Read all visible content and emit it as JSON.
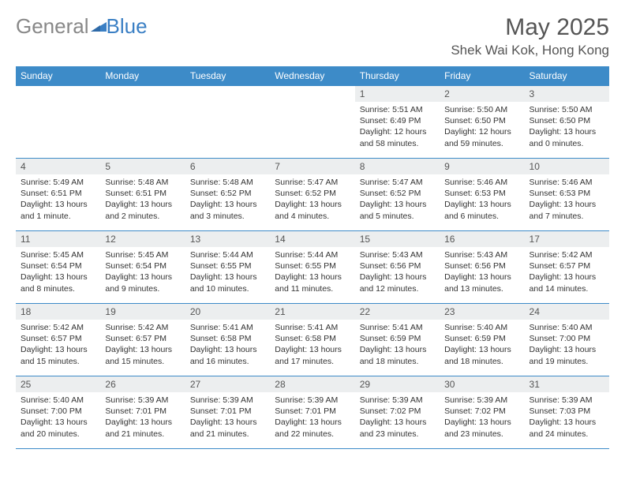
{
  "logo": {
    "part1": "General",
    "part2": "Blue"
  },
  "header": {
    "month_title": "May 2025",
    "location": "Shek Wai Kok, Hong Kong"
  },
  "colors": {
    "header_bg": "#3d8bc8",
    "header_text": "#ffffff",
    "daynum_bg": "#eceeef",
    "border": "#3d8bc8",
    "logo_gray": "#888888",
    "logo_blue": "#3a7fc4"
  },
  "day_labels": [
    "Sunday",
    "Monday",
    "Tuesday",
    "Wednesday",
    "Thursday",
    "Friday",
    "Saturday"
  ],
  "weeks": [
    [
      null,
      null,
      null,
      null,
      {
        "n": "1",
        "sr": "5:51 AM",
        "ss": "6:49 PM",
        "dl": "12 hours and 58 minutes."
      },
      {
        "n": "2",
        "sr": "5:50 AM",
        "ss": "6:50 PM",
        "dl": "12 hours and 59 minutes."
      },
      {
        "n": "3",
        "sr": "5:50 AM",
        "ss": "6:50 PM",
        "dl": "13 hours and 0 minutes."
      }
    ],
    [
      {
        "n": "4",
        "sr": "5:49 AM",
        "ss": "6:51 PM",
        "dl": "13 hours and 1 minute."
      },
      {
        "n": "5",
        "sr": "5:48 AM",
        "ss": "6:51 PM",
        "dl": "13 hours and 2 minutes."
      },
      {
        "n": "6",
        "sr": "5:48 AM",
        "ss": "6:52 PM",
        "dl": "13 hours and 3 minutes."
      },
      {
        "n": "7",
        "sr": "5:47 AM",
        "ss": "6:52 PM",
        "dl": "13 hours and 4 minutes."
      },
      {
        "n": "8",
        "sr": "5:47 AM",
        "ss": "6:52 PM",
        "dl": "13 hours and 5 minutes."
      },
      {
        "n": "9",
        "sr": "5:46 AM",
        "ss": "6:53 PM",
        "dl": "13 hours and 6 minutes."
      },
      {
        "n": "10",
        "sr": "5:46 AM",
        "ss": "6:53 PM",
        "dl": "13 hours and 7 minutes."
      }
    ],
    [
      {
        "n": "11",
        "sr": "5:45 AM",
        "ss": "6:54 PM",
        "dl": "13 hours and 8 minutes."
      },
      {
        "n": "12",
        "sr": "5:45 AM",
        "ss": "6:54 PM",
        "dl": "13 hours and 9 minutes."
      },
      {
        "n": "13",
        "sr": "5:44 AM",
        "ss": "6:55 PM",
        "dl": "13 hours and 10 minutes."
      },
      {
        "n": "14",
        "sr": "5:44 AM",
        "ss": "6:55 PM",
        "dl": "13 hours and 11 minutes."
      },
      {
        "n": "15",
        "sr": "5:43 AM",
        "ss": "6:56 PM",
        "dl": "13 hours and 12 minutes."
      },
      {
        "n": "16",
        "sr": "5:43 AM",
        "ss": "6:56 PM",
        "dl": "13 hours and 13 minutes."
      },
      {
        "n": "17",
        "sr": "5:42 AM",
        "ss": "6:57 PM",
        "dl": "13 hours and 14 minutes."
      }
    ],
    [
      {
        "n": "18",
        "sr": "5:42 AM",
        "ss": "6:57 PM",
        "dl": "13 hours and 15 minutes."
      },
      {
        "n": "19",
        "sr": "5:42 AM",
        "ss": "6:57 PM",
        "dl": "13 hours and 15 minutes."
      },
      {
        "n": "20",
        "sr": "5:41 AM",
        "ss": "6:58 PM",
        "dl": "13 hours and 16 minutes."
      },
      {
        "n": "21",
        "sr": "5:41 AM",
        "ss": "6:58 PM",
        "dl": "13 hours and 17 minutes."
      },
      {
        "n": "22",
        "sr": "5:41 AM",
        "ss": "6:59 PM",
        "dl": "13 hours and 18 minutes."
      },
      {
        "n": "23",
        "sr": "5:40 AM",
        "ss": "6:59 PM",
        "dl": "13 hours and 18 minutes."
      },
      {
        "n": "24",
        "sr": "5:40 AM",
        "ss": "7:00 PM",
        "dl": "13 hours and 19 minutes."
      }
    ],
    [
      {
        "n": "25",
        "sr": "5:40 AM",
        "ss": "7:00 PM",
        "dl": "13 hours and 20 minutes."
      },
      {
        "n": "26",
        "sr": "5:39 AM",
        "ss": "7:01 PM",
        "dl": "13 hours and 21 minutes."
      },
      {
        "n": "27",
        "sr": "5:39 AM",
        "ss": "7:01 PM",
        "dl": "13 hours and 21 minutes."
      },
      {
        "n": "28",
        "sr": "5:39 AM",
        "ss": "7:01 PM",
        "dl": "13 hours and 22 minutes."
      },
      {
        "n": "29",
        "sr": "5:39 AM",
        "ss": "7:02 PM",
        "dl": "13 hours and 23 minutes."
      },
      {
        "n": "30",
        "sr": "5:39 AM",
        "ss": "7:02 PM",
        "dl": "13 hours and 23 minutes."
      },
      {
        "n": "31",
        "sr": "5:39 AM",
        "ss": "7:03 PM",
        "dl": "13 hours and 24 minutes."
      }
    ]
  ],
  "labels": {
    "sunrise": "Sunrise:",
    "sunset": "Sunset:",
    "daylight": "Daylight:"
  }
}
